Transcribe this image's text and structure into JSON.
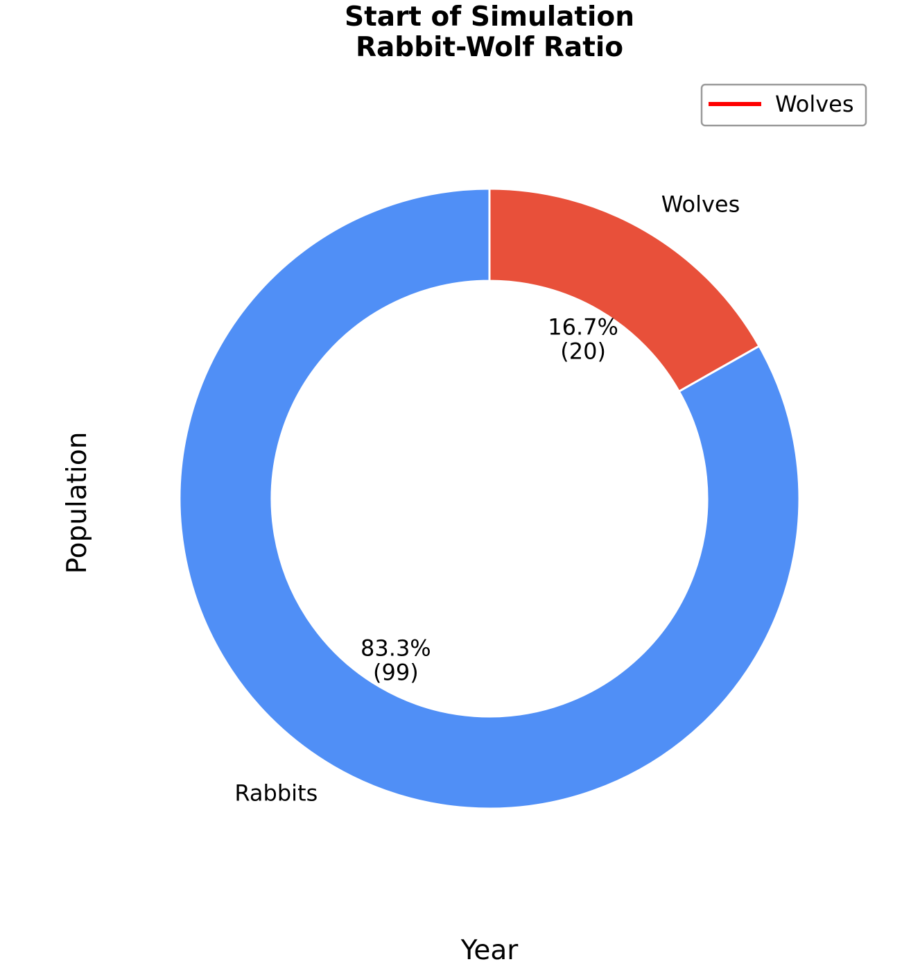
{
  "chart_data": {
    "type": "pie",
    "title": "Start of Simulation\nRabbit-Wolf Ratio",
    "title_lines": [
      "Start of Simulation",
      "Rabbit-Wolf Ratio"
    ],
    "xlabel": "Year",
    "ylabel": "Population",
    "donut": true,
    "start_angle_deg": 90,
    "direction": "clockwise",
    "slices": [
      {
        "label": "Wolves",
        "value": 20,
        "percent_text": "16.7%",
        "count_text": "(20)",
        "color": "#e8503a"
      },
      {
        "label": "Rabbits",
        "value": 99,
        "percent_text": "83.3%",
        "count_text": "(99)",
        "color": "#508ff6"
      }
    ],
    "legend": {
      "placement": "top-right",
      "entries": [
        {
          "label": "Wolves",
          "color": "#ff0000",
          "marker": "line"
        }
      ]
    }
  }
}
